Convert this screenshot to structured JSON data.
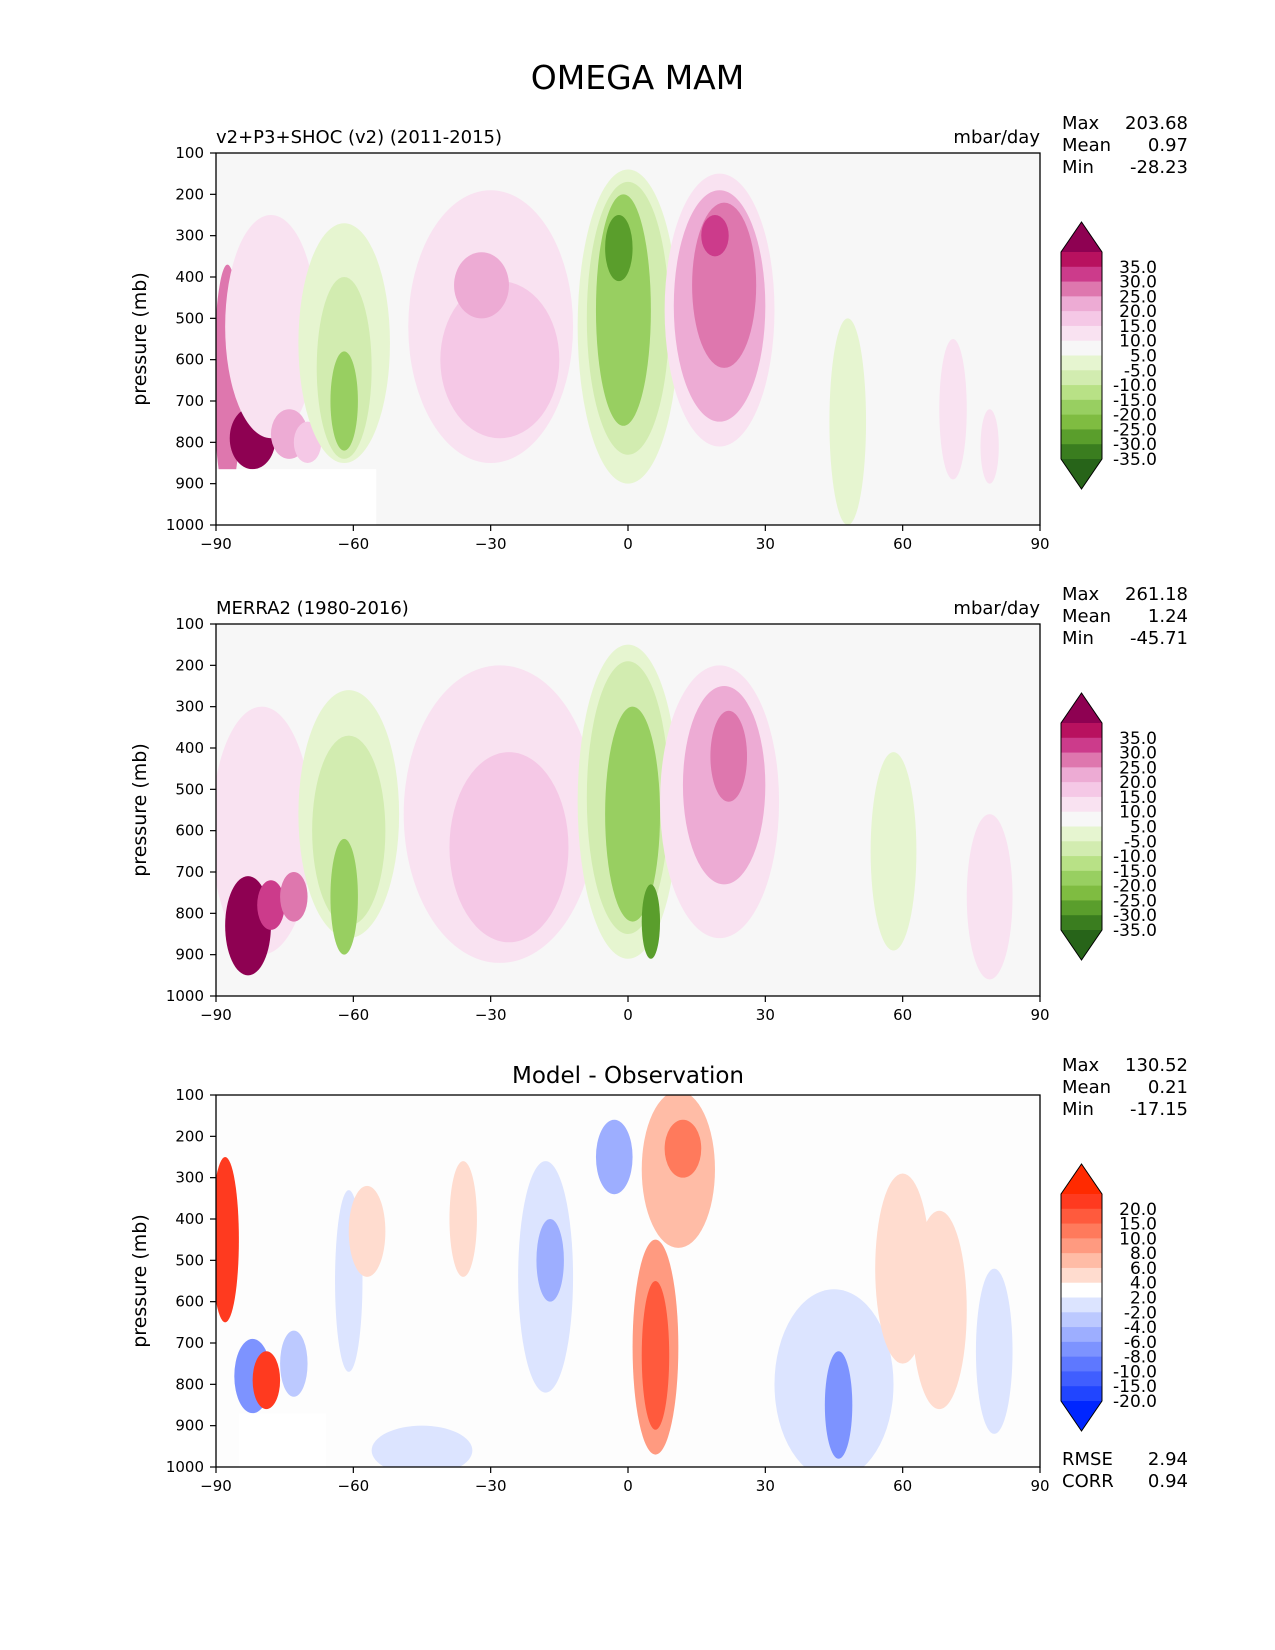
{
  "figure_title": "OMEGA MAM",
  "chart_data": [
    {
      "type": "contour",
      "title_left": "v2+P3+SHOC (v2) (2011-2015)",
      "title_right": "mbar/day",
      "xlabel": "",
      "ylabel": "pressure (mb)",
      "xlim": [
        -90,
        90
      ],
      "ylim": [
        1000,
        100
      ],
      "xticks": [
        -90,
        -60,
        -30,
        0,
        30,
        60,
        90
      ],
      "xtick_labels": [
        "−90",
        "−60",
        "−30",
        "0",
        "30",
        "60",
        "90"
      ],
      "yticks": [
        100,
        200,
        300,
        400,
        500,
        600,
        700,
        800,
        900,
        1000
      ],
      "ytick_labels": [
        "100",
        "200",
        "300",
        "400",
        "500",
        "600",
        "700",
        "800",
        "900",
        "1000"
      ],
      "stats": {
        "max_label": "Max",
        "max": "203.68",
        "mean_label": "Mean",
        "mean": "0.97",
        "min_label": "Min",
        "min": "-28.23"
      },
      "colorbar_labels": [
        "35.0",
        "30.0",
        "25.0",
        "20.0",
        "15.0",
        "10.0",
        "5.0",
        "-5.0",
        "-10.0",
        "-15.0",
        "-20.0",
        "-25.0",
        "-30.0",
        "-35.0"
      ],
      "colorbar_colors": [
        "#8e0152",
        "#b8115f",
        "#cc3b8b",
        "#de77ae",
        "#edabd4",
        "#f5c8e6",
        "#f9e2f1",
        "#f7f7f7",
        "#e6f5d0",
        "#d2ecb0",
        "#b8e186",
        "#98cf61",
        "#7fbc41",
        "#5a9e2c",
        "#3a7d1f",
        "#276419"
      ],
      "regions": [
        {
          "lon": -87.5,
          "p": 650,
          "rx": 3,
          "ry": 280,
          "value": 20
        },
        {
          "lon": -82,
          "p": 790,
          "rx": 5,
          "ry": 75,
          "value": 40
        },
        {
          "lon": -78,
          "p": 520,
          "rx": 10,
          "ry": 270,
          "value": 8
        },
        {
          "lon": -74,
          "p": 780,
          "rx": 4,
          "ry": 60,
          "value": 16
        },
        {
          "lon": -70,
          "p": 800,
          "rx": 3,
          "ry": 50,
          "value": 12
        },
        {
          "lon": -62,
          "p": 560,
          "rx": 10,
          "ry": 290,
          "value": -7
        },
        {
          "lon": -62,
          "p": 620,
          "rx": 6,
          "ry": 220,
          "value": -15
        },
        {
          "lon": -62,
          "p": 700,
          "rx": 3,
          "ry": 120,
          "value": -22
        },
        {
          "lon": -30,
          "p": 520,
          "rx": 18,
          "ry": 330,
          "value": 7
        },
        {
          "lon": -28,
          "p": 600,
          "rx": 13,
          "ry": 190,
          "value": 12
        },
        {
          "lon": -32,
          "p": 420,
          "rx": 6,
          "ry": 80,
          "value": 15
        },
        {
          "lon": 0,
          "p": 520,
          "rx": 11,
          "ry": 380,
          "value": -8
        },
        {
          "lon": 0,
          "p": 500,
          "rx": 9,
          "ry": 330,
          "value": -15
        },
        {
          "lon": -1,
          "p": 480,
          "rx": 6,
          "ry": 280,
          "value": -25
        },
        {
          "lon": -2,
          "p": 330,
          "rx": 3,
          "ry": 80,
          "value": -32
        },
        {
          "lon": 20,
          "p": 480,
          "rx": 12,
          "ry": 330,
          "value": 8
        },
        {
          "lon": 20,
          "p": 470,
          "rx": 10,
          "ry": 280,
          "value": 15
        },
        {
          "lon": 21,
          "p": 420,
          "rx": 7,
          "ry": 200,
          "value": 20
        },
        {
          "lon": 19,
          "p": 300,
          "rx": 3,
          "ry": 50,
          "value": 27
        },
        {
          "lon": 48,
          "p": 750,
          "rx": 4,
          "ry": 250,
          "value": -6
        },
        {
          "lon": 71,
          "p": 720,
          "rx": 3,
          "ry": 170,
          "value": 6
        },
        {
          "lon": 79,
          "p": 810,
          "rx": 2,
          "ry": 90,
          "value": 6
        }
      ],
      "mask": [
        {
          "lon_from": -90,
          "lon_to": -55,
          "p_from": 865,
          "p_to": 1000
        }
      ]
    },
    {
      "type": "contour",
      "title_left": "MERRA2 (1980-2016)",
      "title_right": "mbar/day",
      "xlabel": "",
      "ylabel": "pressure (mb)",
      "xlim": [
        -90,
        90
      ],
      "ylim": [
        1000,
        100
      ],
      "xticks": [
        -90,
        -60,
        -30,
        0,
        30,
        60,
        90
      ],
      "xtick_labels": [
        "−90",
        "−60",
        "−30",
        "0",
        "30",
        "60",
        "90"
      ],
      "yticks": [
        100,
        200,
        300,
        400,
        500,
        600,
        700,
        800,
        900,
        1000
      ],
      "ytick_labels": [
        "100",
        "200",
        "300",
        "400",
        "500",
        "600",
        "700",
        "800",
        "900",
        "1000"
      ],
      "stats": {
        "max_label": "Max",
        "max": "261.18",
        "mean_label": "Mean",
        "mean": "1.24",
        "min_label": "Min",
        "min": "-45.71"
      },
      "colorbar_labels": [
        "35.0",
        "30.0",
        "25.0",
        "20.0",
        "15.0",
        "10.0",
        "5.0",
        "-5.0",
        "-10.0",
        "-15.0",
        "-20.0",
        "-25.0",
        "-30.0",
        "-35.0"
      ],
      "colorbar_colors": [
        "#8e0152",
        "#b8115f",
        "#cc3b8b",
        "#de77ae",
        "#edabd4",
        "#f5c8e6",
        "#f9e2f1",
        "#f7f7f7",
        "#e6f5d0",
        "#d2ecb0",
        "#b8e186",
        "#98cf61",
        "#7fbc41",
        "#5a9e2c",
        "#3a7d1f",
        "#276419"
      ],
      "regions": [
        {
          "lon": -80,
          "p": 600,
          "rx": 11,
          "ry": 300,
          "value": 7
        },
        {
          "lon": -83,
          "p": 830,
          "rx": 5,
          "ry": 120,
          "value": 40
        },
        {
          "lon": -78,
          "p": 780,
          "rx": 3,
          "ry": 60,
          "value": 25
        },
        {
          "lon": -73,
          "p": 760,
          "rx": 3,
          "ry": 60,
          "value": 22
        },
        {
          "lon": -61,
          "p": 560,
          "rx": 11,
          "ry": 300,
          "value": -7
        },
        {
          "lon": -61,
          "p": 600,
          "rx": 8,
          "ry": 230,
          "value": -15
        },
        {
          "lon": -62,
          "p": 760,
          "rx": 3,
          "ry": 140,
          "value": -24
        },
        {
          "lon": -28,
          "p": 560,
          "rx": 21,
          "ry": 360,
          "value": 7
        },
        {
          "lon": -26,
          "p": 640,
          "rx": 13,
          "ry": 230,
          "value": 12
        },
        {
          "lon": 0,
          "p": 530,
          "rx": 11,
          "ry": 380,
          "value": -8
        },
        {
          "lon": 0,
          "p": 520,
          "rx": 9,
          "ry": 330,
          "value": -15
        },
        {
          "lon": 1,
          "p": 560,
          "rx": 6,
          "ry": 260,
          "value": -25
        },
        {
          "lon": 5,
          "p": 820,
          "rx": 2,
          "ry": 90,
          "value": -34
        },
        {
          "lon": 20,
          "p": 530,
          "rx": 13,
          "ry": 330,
          "value": 8
        },
        {
          "lon": 21,
          "p": 490,
          "rx": 9,
          "ry": 240,
          "value": 15
        },
        {
          "lon": 22,
          "p": 420,
          "rx": 4,
          "ry": 110,
          "value": 20
        },
        {
          "lon": 58,
          "p": 650,
          "rx": 5,
          "ry": 240,
          "value": -6
        },
        {
          "lon": 79,
          "p": 760,
          "rx": 5,
          "ry": 200,
          "value": 6
        }
      ],
      "mask": []
    },
    {
      "type": "contour",
      "title_center": "Model - Observation",
      "xlabel": "",
      "ylabel": "pressure (mb)",
      "xlim": [
        -90,
        90
      ],
      "ylim": [
        1000,
        100
      ],
      "xticks": [
        -90,
        -60,
        -30,
        0,
        30,
        60,
        90
      ],
      "xtick_labels": [
        "−90",
        "−60",
        "−30",
        "0",
        "30",
        "60",
        "90"
      ],
      "yticks": [
        100,
        200,
        300,
        400,
        500,
        600,
        700,
        800,
        900,
        1000
      ],
      "ytick_labels": [
        "100",
        "200",
        "300",
        "400",
        "500",
        "600",
        "700",
        "800",
        "900",
        "1000"
      ],
      "stats": {
        "max_label": "Max",
        "max": "130.52",
        "mean_label": "Mean",
        "mean": "0.21",
        "min_label": "Min",
        "min": "-17.15"
      },
      "metrics": {
        "rmse_label": "RMSE",
        "rmse": "2.94",
        "corr_label": "CORR",
        "corr": "0.94"
      },
      "colorbar_labels": [
        "20.0",
        "15.0",
        "10.0",
        "8.0",
        "6.0",
        "4.0",
        "2.0",
        "-2.0",
        "-4.0",
        "-6.0",
        "-8.0",
        "-10.0",
        "-15.0",
        "-20.0"
      ],
      "colorbar_colors": [
        "#ff2a00",
        "#ff3a1f",
        "#ff5a3d",
        "#ff7a5c",
        "#ff9a80",
        "#ffbca6",
        "#ffdccf",
        "#ffffff",
        "#dce4ff",
        "#bcc9ff",
        "#9daeff",
        "#7d93ff",
        "#5e78ff",
        "#405eff",
        "#2145ff",
        "#0026ff"
      ],
      "regions": [
        {
          "lon": -88,
          "p": 450,
          "rx": 3,
          "ry": 200,
          "value": 18
        },
        {
          "lon": -82,
          "p": 780,
          "rx": 4,
          "ry": 90,
          "value": -9
        },
        {
          "lon": -79,
          "p": 790,
          "rx": 3,
          "ry": 70,
          "value": 15
        },
        {
          "lon": -73,
          "p": 750,
          "rx": 3,
          "ry": 80,
          "value": -6
        },
        {
          "lon": -61,
          "p": 550,
          "rx": 3,
          "ry": 220,
          "value": -3
        },
        {
          "lon": -57,
          "p": 430,
          "rx": 4,
          "ry": 110,
          "value": 3
        },
        {
          "lon": -36,
          "p": 400,
          "rx": 3,
          "ry": 140,
          "value": 3
        },
        {
          "lon": -18,
          "p": 540,
          "rx": 6,
          "ry": 280,
          "value": -4
        },
        {
          "lon": -17,
          "p": 500,
          "rx": 3,
          "ry": 100,
          "value": -8
        },
        {
          "lon": -3,
          "p": 250,
          "rx": 4,
          "ry": 90,
          "value": -7
        },
        {
          "lon": 6,
          "p": 710,
          "rx": 5,
          "ry": 260,
          "value": 6
        },
        {
          "lon": 6,
          "p": 730,
          "rx": 3,
          "ry": 180,
          "value": 13
        },
        {
          "lon": 11,
          "p": 280,
          "rx": 8,
          "ry": 190,
          "value": 5
        },
        {
          "lon": 12,
          "p": 230,
          "rx": 4,
          "ry": 70,
          "value": 9
        },
        {
          "lon": -45,
          "p": 960,
          "rx": 11,
          "ry": 60,
          "value": -4
        },
        {
          "lon": 45,
          "p": 800,
          "rx": 13,
          "ry": 230,
          "value": -4
        },
        {
          "lon": 46,
          "p": 850,
          "rx": 3,
          "ry": 130,
          "value": -9
        },
        {
          "lon": 60,
          "p": 520,
          "rx": 6,
          "ry": 230,
          "value": 3
        },
        {
          "lon": 68,
          "p": 620,
          "rx": 6,
          "ry": 240,
          "value": 3
        },
        {
          "lon": 80,
          "p": 720,
          "rx": 4,
          "ry": 200,
          "value": -3
        }
      ],
      "mask": [
        {
          "lon_from": -85,
          "lon_to": -66,
          "p_from": 870,
          "p_to": 1000
        }
      ]
    }
  ]
}
